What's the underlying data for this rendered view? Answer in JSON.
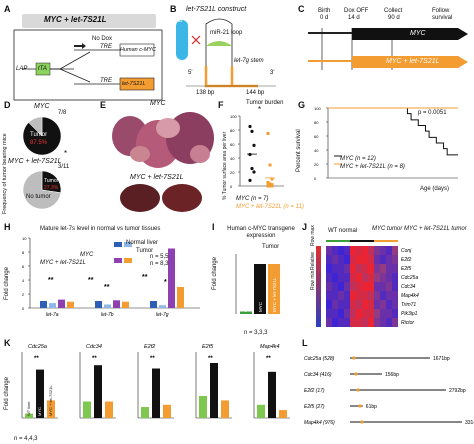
{
  "panels": {
    "A": {
      "letter": "A",
      "title": "MYC + let-7S21L",
      "lap": "LAP",
      "tta": "tTA",
      "nodox": "No Dox",
      "tre1": "TRE",
      "tre2": "TRE",
      "gene1": "Human c-MYC",
      "gene2": "let-7S21L"
    },
    "B": {
      "letter": "B",
      "title": "let-7S21L construct",
      "mir21": "miR-21 loop",
      "stem": "let-7g stem",
      "bp1": "138 bp",
      "bp2": "144 bp",
      "five": "5'",
      "three": "3'",
      "lin28": "LIN28"
    },
    "C": {
      "letter": "C",
      "birth": "Birth",
      "birth_d": "0 d",
      "dox": "Dox OFF",
      "dox_d": "14 d",
      "collect": "Collect",
      "collect_d": "90 d",
      "follow": "Follow",
      "survival": "survival",
      "arrow1": "MYC",
      "arrow2": "MYC + let-7S21L"
    },
    "D": {
      "letter": "D",
      "ylabel": "Frequency of tumor bearing mice",
      "top_title": "MYC",
      "top_frac": "7/8",
      "top_tumor": "Tumor",
      "top_pct": "87.5%",
      "bot_title": "MYC + let-7S21L",
      "bot_frac": "3/11",
      "bot_tumor": "Tumor",
      "bot_pct": "27.3%",
      "bot_notumor": "No tumor",
      "star": "*"
    },
    "E": {
      "letter": "E",
      "top": "MYC",
      "bottom": "MYC + let-7S21L"
    },
    "F": {
      "letter": "F",
      "title": "Tumor burden",
      "ylabel": "% Tumor surface area per liver",
      "leg1": "MYC (n = 7)",
      "leg2": "MYC + let-7S21L (n = 11)",
      "star": "*",
      "yticks": [
        "0",
        "20",
        "40",
        "60",
        "80",
        "100"
      ]
    },
    "G": {
      "letter": "G",
      "ylabel": "Percent survival",
      "xlabel": "Age (days)",
      "p": "p = 0.0051",
      "leg1": "MYC (n = 12)",
      "leg2": "MYC + let-7S21L (n = 8)",
      "yticks": [
        "0",
        "20",
        "40",
        "60",
        "80",
        "100"
      ]
    },
    "H": {
      "letter": "H",
      "title": "Mature let-7s level in normal vs tumor tissues",
      "ylabel": "Fold change",
      "leg_normal": "Normal liver",
      "leg_tumor": "Tumor",
      "myc": "MYC",
      "combo": "MYC + let-7S21L",
      "n1": "n = 5,5",
      "n2": "n = 8,3",
      "cats": [
        "let-7a",
        "let-7b",
        "let-7g"
      ],
      "stars": [
        "**",
        "**",
        "**",
        "**",
        "*"
      ],
      "yticks": [
        "0",
        "2",
        "4",
        "6",
        "8",
        "10"
      ]
    },
    "I": {
      "letter": "I",
      "title": "Human c-MYC transgene expression",
      "ylabel": "Fold change",
      "tumor": "Tumor",
      "n": "n = 3,3,3",
      "bars": [
        "WT normal liver",
        "MYC",
        "MYC + let-7S21L"
      ]
    },
    "J": {
      "letter": "J",
      "g1": "WT normal",
      "g2": "MYC tumor",
      "g3": "MYC + let-7S21L tumor",
      "rowmax": "Row max",
      "relative": "Relative",
      "rowmin": "Row min",
      "genes": [
        "Cdc25a",
        "Cdc34",
        "Map4k4",
        "Trim71",
        "Pik3ip1",
        "Rictor"
      ],
      "genes_top": [
        "Conj",
        "E2f2",
        "E2f5"
      ]
    },
    "K": {
      "letter": "K",
      "ylabel": "Fold change",
      "n": "n = 4,4,3",
      "genes": [
        "Cdc25a",
        "Cdc34",
        "E2f2",
        "E2f5",
        "Map4k4"
      ],
      "stars": [
        "**",
        "**",
        "**",
        "**",
        "**"
      ],
      "leg": [
        "WT liver",
        "MYC",
        "MYC + let-7S21L"
      ]
    },
    "L": {
      "letter": "L",
      "rows": [
        {
          "name": "Cdc25a (528)",
          "len": "1671bp"
        },
        {
          "name": "Cdc34 (416)",
          "len": "156bp"
        },
        {
          "name": "E2f2 (17)",
          "len": "2792bp"
        },
        {
          "name": "E2f5 (27)",
          "len": "61bp"
        },
        {
          "name": "Map4k4 (976)",
          "len": "3314bp"
        }
      ]
    }
  },
  "chart_data": [
    {
      "type": "pie",
      "title": "MYC",
      "values": [
        87.5,
        12.5
      ],
      "labels": [
        "Tumor",
        "No tumor"
      ]
    },
    {
      "type": "pie",
      "title": "MYC + let-7S21L",
      "values": [
        27.3,
        72.7
      ],
      "labels": [
        "Tumor",
        "No tumor"
      ]
    },
    {
      "type": "scatter",
      "title": "Tumor burden",
      "ylabel": "% Tumor surface area per liver",
      "ylim": [
        0,
        100
      ],
      "series": [
        {
          "name": "MYC (n = 7)",
          "values": [
            85,
            78,
            58,
            45,
            25,
            20,
            8
          ]
        },
        {
          "name": "MYC + let-7S21L (n = 11)",
          "values": [
            75,
            30,
            10,
            5,
            3,
            2,
            1,
            1,
            0,
            0,
            0
          ]
        }
      ]
    },
    {
      "type": "line",
      "ylabel": "Percent survival",
      "xlabel": "Age (days)",
      "ylim": [
        0,
        100
      ],
      "series": [
        {
          "name": "MYC (n = 12)",
          "x": [
            0,
            100,
            110,
            115,
            125,
            135,
            140,
            150,
            160,
            165,
            180
          ],
          "values": [
            100,
            100,
            92,
            83,
            75,
            67,
            58,
            50,
            42,
            33,
            33
          ]
        },
        {
          "name": "MYC + let-7S21L (n = 8)",
          "x": [
            0,
            180
          ],
          "values": [
            100,
            100
          ]
        }
      ]
    },
    {
      "type": "bar",
      "title": "Mature let-7s level in normal vs tumor tissues",
      "categories": [
        "let-7a",
        "let-7b",
        "let-7g"
      ],
      "ylim": [
        0,
        10
      ],
      "series": [
        {
          "name": "MYC normal",
          "values": [
            1.0,
            1.0,
            1.0
          ]
        },
        {
          "name": "MYC tumor",
          "values": [
            0.7,
            0.5,
            0.4
          ]
        },
        {
          "name": "MYC + let-7S21L normal",
          "values": [
            1.2,
            1.1,
            8.5
          ]
        },
        {
          "name": "MYC + let-7S21L tumor",
          "values": [
            0.9,
            0.9,
            3.0
          ]
        }
      ]
    },
    {
      "type": "bar",
      "title": "Human c-MYC transgene expression",
      "categories": [
        "WT normal liver",
        "MYC",
        "MYC + let-7S21L"
      ],
      "values": [
        0.05,
        1.0,
        1.0
      ],
      "ylim": [
        0,
        1.2
      ]
    },
    {
      "type": "heatmap",
      "genes": [
        "Conj",
        "E2f2",
        "E2f5",
        "Cdc25a",
        "Cdc34",
        "Map4k4",
        "Trim71",
        "Pik3ip1",
        "Rictor"
      ]
    },
    {
      "type": "bar",
      "categories": [
        "Cdc25a",
        "Cdc34",
        "E2f2",
        "E2f5",
        "Map4k4"
      ],
      "series": [
        {
          "name": "WT liver",
          "values": [
            1,
            1,
            1,
            1,
            1
          ]
        },
        {
          "name": "MYC",
          "values": [
            11,
            3.2,
            4.5,
            2.5,
            3.5
          ]
        },
        {
          "name": "MYC + let-7S21L",
          "values": [
            4,
            1,
            1.2,
            0.8,
            0.6
          ]
        }
      ]
    }
  ]
}
